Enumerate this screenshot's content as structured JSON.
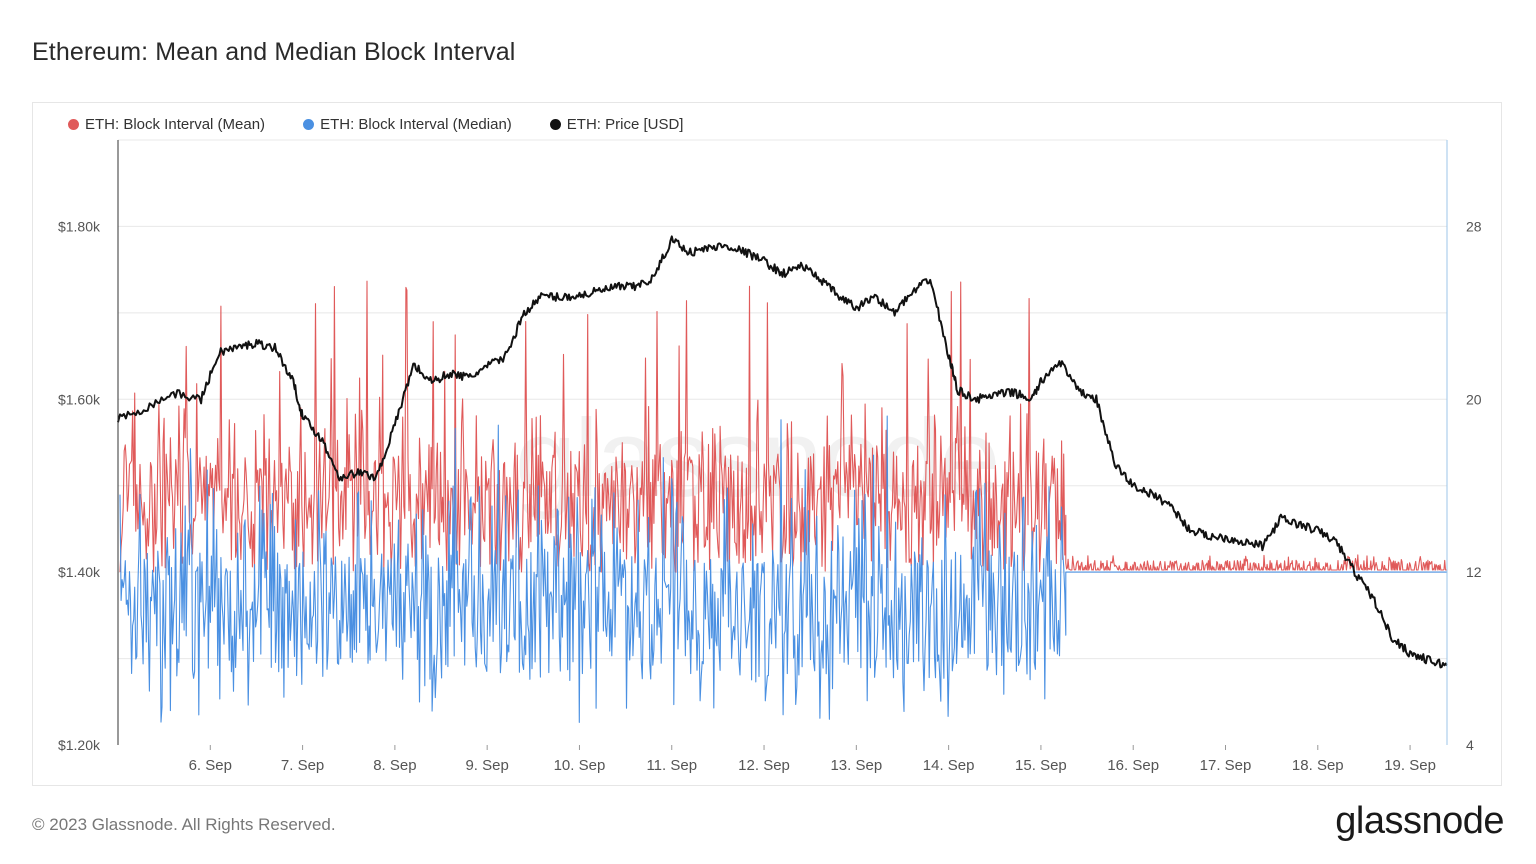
{
  "title": "Ethereum: Mean and Median Block Interval",
  "footer": "© 2023 Glassnode. All Rights Reserved.",
  "brand": "glassnode",
  "watermark": "glassnode",
  "chart_data": {
    "type": "line",
    "title": "Ethereum: Mean and Median Block Interval",
    "legend_placement": "top-left",
    "grid": true,
    "x_range": [
      "5. Sep",
      "19. Sep"
    ],
    "x_ticks": [
      "6. Sep",
      "7. Sep",
      "8. Sep",
      "9. Sep",
      "10. Sep",
      "11. Sep",
      "12. Sep",
      "13. Sep",
      "14. Sep",
      "15. Sep",
      "16. Sep",
      "17. Sep",
      "18. Sep",
      "19. Sep"
    ],
    "y_left": {
      "ticks": [
        "$1.20k",
        "$1.40k",
        "$1.60k",
        "$1.80k"
      ],
      "ylim": [
        1200,
        1900
      ]
    },
    "y_right": {
      "ticks": [
        "4",
        "12",
        "20",
        "28"
      ],
      "ylim": [
        4,
        32
      ]
    },
    "series": [
      {
        "name": "ETH: Block Interval (Mean)",
        "color": "#e05a5a",
        "axis": "right",
        "description_values": "noisy 12-20s with spikes to ~26s until 15. Sep, then ~12-12.5s",
        "before_merge": {
          "base": 15,
          "low": 12,
          "high": 26
        },
        "after_merge": {
          "base": 12.1,
          "low": 12,
          "high": 12.8
        }
      },
      {
        "name": "ETH: Block Interval (Median)",
        "color": "#4a90e2",
        "axis": "right",
        "before_merge": {
          "base": 11,
          "low": 5,
          "high": 20
        },
        "after_merge": {
          "base": 12,
          "low": 12,
          "high": 12
        }
      },
      {
        "name": "ETH: Price [USD]",
        "color": "#111111",
        "axis": "left",
        "x": [
          5.0,
          5.3,
          5.6,
          5.9,
          6.1,
          6.3,
          6.5,
          6.7,
          6.9,
          7.0,
          7.2,
          7.4,
          7.6,
          7.8,
          8.0,
          8.2,
          8.4,
          8.6,
          8.8,
          9.0,
          9.2,
          9.4,
          9.6,
          9.8,
          10.0,
          10.2,
          10.4,
          10.6,
          10.8,
          11.0,
          11.2,
          11.4,
          11.6,
          11.8,
          12.0,
          12.2,
          12.4,
          12.6,
          12.8,
          13.0,
          13.2,
          13.4,
          13.6,
          13.8,
          14.0,
          14.1,
          14.3,
          14.5,
          14.7,
          14.9,
          15.0,
          15.2,
          15.4,
          15.6,
          15.8,
          16.0,
          16.2,
          16.4,
          16.6,
          16.8,
          17.0,
          17.2,
          17.4,
          17.6,
          17.8,
          18.0,
          18.2,
          18.4,
          18.6,
          18.8,
          19.0,
          19.2,
          19.4
        ],
        "y": [
          1577,
          1590,
          1607,
          1600,
          1655,
          1660,
          1665,
          1660,
          1620,
          1580,
          1555,
          1510,
          1515,
          1510,
          1570,
          1640,
          1620,
          1630,
          1625,
          1638,
          1650,
          1700,
          1720,
          1718,
          1720,
          1725,
          1730,
          1730,
          1740,
          1785,
          1770,
          1775,
          1778,
          1770,
          1760,
          1745,
          1755,
          1740,
          1720,
          1705,
          1720,
          1700,
          1722,
          1740,
          1650,
          1610,
          1600,
          1605,
          1608,
          1600,
          1620,
          1645,
          1610,
          1600,
          1525,
          1500,
          1490,
          1478,
          1450,
          1442,
          1440,
          1435,
          1430,
          1462,
          1455,
          1448,
          1435,
          1400,
          1370,
          1325,
          1306,
          1298,
          1292
        ]
      }
    ]
  }
}
